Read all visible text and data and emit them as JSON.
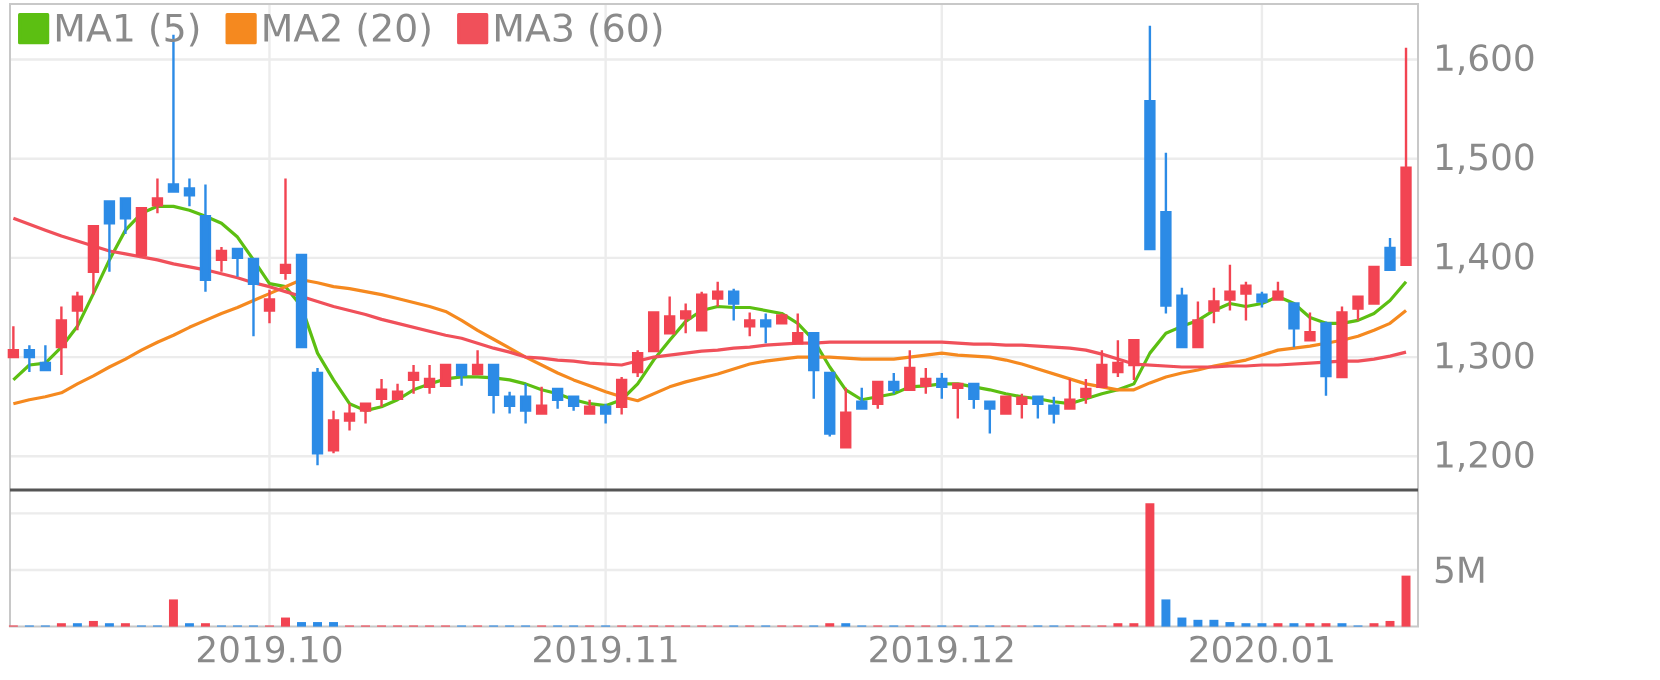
{
  "chart_data": [
    {
      "type": "candlestick",
      "categories": [
        null,
        null,
        null,
        null,
        null,
        null,
        null,
        null,
        null,
        null,
        null,
        null,
        null,
        null,
        null,
        null,
        "2019.10",
        null,
        null,
        null,
        null,
        null,
        null,
        null,
        null,
        null,
        null,
        null,
        null,
        null,
        null,
        null,
        null,
        null,
        null,
        null,
        null,
        "2019.11",
        null,
        null,
        null,
        null,
        null,
        null,
        null,
        null,
        null,
        null,
        null,
        null,
        null,
        null,
        null,
        null,
        null,
        null,
        null,
        null,
        "2019.12",
        null,
        null,
        null,
        null,
        null,
        null,
        null,
        null,
        null,
        null,
        null,
        null,
        null,
        null,
        null,
        null,
        null,
        null,
        null,
        "2020.01",
        null,
        null,
        null,
        null,
        null,
        null,
        null,
        null,
        null
      ],
      "ohlc": [
        [
          1300,
          1331,
          1300,
          1307
        ],
        [
          1307,
          1312,
          1285,
          1300
        ],
        [
          1294,
          1312,
          1287,
          1287
        ],
        [
          1310,
          1351,
          1282,
          1337
        ],
        [
          1347,
          1366,
          1327,
          1361
        ],
        [
          1386,
          1432,
          1363,
          1432
        ],
        [
          1457,
          1457,
          1386,
          1435
        ],
        [
          1460,
          1460,
          1424,
          1440
        ],
        [
          1403,
          1450,
          1401,
          1450
        ],
        [
          1453,
          1480,
          1445,
          1460
        ],
        [
          1474,
          1625,
          1467,
          1467
        ],
        [
          1470,
          1480,
          1452,
          1463
        ],
        [
          1442,
          1474,
          1366,
          1378
        ],
        [
          1398,
          1411,
          1386,
          1407
        ],
        [
          1409,
          1409,
          1381,
          1400
        ],
        [
          1399,
          1399,
          1321,
          1374
        ],
        [
          1347,
          1368,
          1334,
          1358
        ],
        [
          1385,
          1480,
          1378,
          1393
        ],
        [
          1403,
          1403,
          1310,
          1310
        ],
        [
          1284,
          1289,
          1191,
          1203
        ],
        [
          1206,
          1246,
          1203,
          1236
        ],
        [
          1236,
          1253,
          1226,
          1243
        ],
        [
          1246,
          1253,
          1233,
          1253
        ],
        [
          1258,
          1278,
          1250,
          1267
        ],
        [
          1258,
          1273,
          1258,
          1265
        ],
        [
          1277,
          1292,
          1263,
          1284
        ],
        [
          1270,
          1292,
          1263,
          1278
        ],
        [
          1271,
          1292,
          1270,
          1292
        ],
        [
          1292,
          1292,
          1271,
          1282
        ],
        [
          1283,
          1307,
          1283,
          1292
        ],
        [
          1292,
          1292,
          1243,
          1262
        ],
        [
          1260,
          1265,
          1243,
          1251
        ],
        [
          1260,
          1273,
          1233,
          1246
        ],
        [
          1243,
          1270,
          1242,
          1251
        ],
        [
          1268,
          1268,
          1248,
          1257
        ],
        [
          1260,
          1260,
          1246,
          1251
        ],
        [
          1243,
          1257,
          1243,
          1250
        ],
        [
          1250,
          1253,
          1233,
          1243
        ],
        [
          1250,
          1280,
          1242,
          1277
        ],
        [
          1285,
          1307,
          1280,
          1304
        ],
        [
          1306,
          1345,
          1306,
          1345
        ],
        [
          1324,
          1361,
          1324,
          1341
        ],
        [
          1339,
          1354,
          1324,
          1346
        ],
        [
          1327,
          1366,
          1327,
          1363
        ],
        [
          1359,
          1376,
          1351,
          1366
        ],
        [
          1366,
          1369,
          1337,
          1354
        ],
        [
          1331,
          1345,
          1321,
          1337
        ],
        [
          1337,
          1344,
          1314,
          1331
        ],
        [
          1334,
          1344,
          1334,
          1342
        ],
        [
          1314,
          1344,
          1314,
          1324
        ],
        [
          1324,
          1324,
          1258,
          1287
        ],
        [
          1284,
          1284,
          1220,
          1223
        ],
        [
          1209,
          1269,
          1209,
          1244
        ],
        [
          1255,
          1269,
          1248,
          1248
        ],
        [
          1253,
          1275,
          1248,
          1275
        ],
        [
          1275,
          1284,
          1263,
          1267
        ],
        [
          1267,
          1307,
          1267,
          1289
        ],
        [
          1271,
          1289,
          1263,
          1278
        ],
        [
          1278,
          1284,
          1258,
          1270
        ],
        [
          1269,
          1273,
          1238,
          1273
        ],
        [
          1273,
          1273,
          1248,
          1258
        ],
        [
          1255,
          1255,
          1223,
          1248
        ],
        [
          1243,
          1260,
          1243,
          1260
        ],
        [
          1253,
          1263,
          1238,
          1259
        ],
        [
          1260,
          1260,
          1238,
          1253
        ],
        [
          1251,
          1260,
          1233,
          1243
        ],
        [
          1248,
          1278,
          1248,
          1257
        ],
        [
          1260,
          1278,
          1253,
          1268
        ],
        [
          1270,
          1307,
          1270,
          1292
        ],
        [
          1285,
          1317,
          1280,
          1294
        ],
        [
          1292,
          1317,
          1277,
          1317
        ],
        [
          1558,
          1634,
          1408,
          1409
        ],
        [
          1446,
          1506,
          1344,
          1352
        ],
        [
          1362,
          1370,
          1310,
          1310
        ],
        [
          1310,
          1356,
          1310,
          1337
        ],
        [
          1347,
          1370,
          1334,
          1356
        ],
        [
          1358,
          1393,
          1347,
          1366
        ],
        [
          1364,
          1376,
          1337,
          1372
        ],
        [
          1363,
          1366,
          1350,
          1356
        ],
        [
          1358,
          1376,
          1358,
          1366
        ],
        [
          1354,
          1354,
          1310,
          1329
        ],
        [
          1317,
          1345,
          1317,
          1325
        ],
        [
          1334,
          1336,
          1261,
          1281
        ],
        [
          1280,
          1351,
          1280,
          1345
        ],
        [
          1349,
          1361,
          1337,
          1361
        ],
        [
          1354,
          1391,
          1354,
          1391
        ],
        [
          1410,
          1420,
          1388,
          1388
        ],
        [
          1393,
          1612,
          1393,
          1491
        ]
      ],
      "colors": [
        "#f24452",
        "#2c8be6",
        "#2c8be6",
        "#f24452",
        "#f24452",
        "#f24452",
        "#2c8be6",
        "#2c8be6",
        "#f24452",
        "#f24452",
        "#2c8be6",
        "#2c8be6",
        "#2c8be6",
        "#f24452",
        "#2c8be6",
        "#2c8be6",
        "#f24452",
        "#f24452",
        "#2c8be6",
        "#2c8be6",
        "#f24452",
        "#f24452",
        "#f24452",
        "#f24452",
        "#f24452",
        "#f24452",
        "#f24452",
        "#f24452",
        "#2c8be6",
        "#f24452",
        "#2c8be6",
        "#2c8be6",
        "#2c8be6",
        "#f24452",
        "#2c8be6",
        "#2c8be6",
        "#f24452",
        "#2c8be6",
        "#f24452",
        "#f24452",
        "#f24452",
        "#f24452",
        "#f24452",
        "#f24452",
        "#f24452",
        "#2c8be6",
        "#f24452",
        "#2c8be6",
        "#f24452",
        "#f24452",
        "#2c8be6",
        "#2c8be6",
        "#f24452",
        "#2c8be6",
        "#f24452",
        "#2c8be6",
        "#f24452",
        "#f24452",
        "#2c8be6",
        "#f24452",
        "#2c8be6",
        "#2c8be6",
        "#f24452",
        "#f24452",
        "#2c8be6",
        "#2c8be6",
        "#f24452",
        "#f24452",
        "#f24452",
        "#f24452",
        "#f24452",
        "#2c8be6",
        "#2c8be6",
        "#2c8be6",
        "#f24452",
        "#f24452",
        "#f24452",
        "#f24452",
        "#2c8be6",
        "#f24452",
        "#2c8be6",
        "#f24452",
        "#2c8be6",
        "#f24452",
        "#f24452",
        "#f24452",
        "#2c8be6",
        "#f24452"
      ],
      "series": [
        {
          "name": "MA1 (5)",
          "type": "line",
          "color": "#5cbf12",
          "values": [
            1277,
            1292,
            1294,
            1310,
            1331,
            1364,
            1398,
            1428,
            1445,
            1452,
            1452,
            1448,
            1442,
            1435,
            1421,
            1398,
            1374,
            1371,
            1351,
            1304,
            1277,
            1253,
            1246,
            1250,
            1257,
            1267,
            1273,
            1278,
            1280,
            1280,
            1279,
            1277,
            1273,
            1267,
            1263,
            1257,
            1253,
            1251,
            1257,
            1273,
            1297,
            1317,
            1336,
            1347,
            1351,
            1350,
            1350,
            1347,
            1344,
            1334,
            1317,
            1290,
            1267,
            1257,
            1260,
            1263,
            1270,
            1271,
            1273,
            1273,
            1270,
            1267,
            1263,
            1260,
            1258,
            1255,
            1253,
            1258,
            1263,
            1267,
            1273,
            1304,
            1324,
            1331,
            1337,
            1347,
            1354,
            1351,
            1354,
            1361,
            1354,
            1340,
            1334,
            1334,
            1337,
            1344,
            1357,
            1376
          ]
        },
        {
          "name": "MA2 (20)",
          "type": "line",
          "color": "#f5891f",
          "values": [
            1253,
            1257,
            1260,
            1264,
            1273,
            1281,
            1290,
            1298,
            1307,
            1315,
            1322,
            1330,
            1337,
            1344,
            1350,
            1357,
            1364,
            1371,
            1378,
            1375,
            1371,
            1369,
            1366,
            1363,
            1359,
            1355,
            1351,
            1346,
            1337,
            1327,
            1318,
            1309,
            1300,
            1292,
            1284,
            1277,
            1271,
            1265,
            1260,
            1256,
            1263,
            1270,
            1275,
            1279,
            1283,
            1288,
            1293,
            1296,
            1298,
            1300,
            1300,
            1300,
            1299,
            1298,
            1298,
            1298,
            1300,
            1302,
            1304,
            1302,
            1301,
            1300,
            1297,
            1293,
            1288,
            1283,
            1278,
            1273,
            1270,
            1267,
            1267,
            1274,
            1280,
            1284,
            1287,
            1291,
            1294,
            1297,
            1302,
            1307,
            1309,
            1311,
            1314,
            1317,
            1321,
            1327,
            1334,
            1347
          ]
        },
        {
          "name": "MA3 (60)",
          "type": "line",
          "color": "#f0505a",
          "values": [
            1440,
            1434,
            1428,
            1422,
            1417,
            1412,
            1407,
            1404,
            1401,
            1398,
            1394,
            1391,
            1388,
            1384,
            1380,
            1375,
            1371,
            1366,
            1361,
            1356,
            1351,
            1347,
            1343,
            1338,
            1334,
            1330,
            1326,
            1322,
            1319,
            1314,
            1309,
            1305,
            1300,
            1299,
            1297,
            1296,
            1294,
            1293,
            1292,
            1296,
            1300,
            1302,
            1304,
            1306,
            1307,
            1309,
            1310,
            1312,
            1313,
            1314,
            1314,
            1315,
            1315,
            1315,
            1315,
            1315,
            1315,
            1315,
            1315,
            1314,
            1313,
            1313,
            1312,
            1312,
            1311,
            1310,
            1309,
            1307,
            1303,
            1298,
            1293,
            1292,
            1291,
            1290,
            1290,
            1290,
            1291,
            1291,
            1292,
            1292,
            1293,
            1294,
            1295,
            1296,
            1296,
            1298,
            1301,
            1305
          ]
        }
      ],
      "ylim": [
        1166,
        1656
      ],
      "yticks": [
        {
          "value": 1200,
          "label": "1,200"
        },
        {
          "value": 1300,
          "label": "1,300"
        },
        {
          "value": 1400,
          "label": "1,400"
        },
        {
          "value": 1500,
          "label": "1,500"
        },
        {
          "value": 1600,
          "label": "1,600"
        }
      ],
      "grid": true,
      "legend": "top left",
      "tick_labels": "y"
    },
    {
      "type": "bar",
      "categories": [
        null,
        null,
        null,
        null,
        null,
        null,
        null,
        null,
        null,
        null,
        null,
        null,
        null,
        null,
        null,
        null,
        "2019.10",
        null,
        null,
        null,
        null,
        null,
        null,
        null,
        null,
        null,
        null,
        null,
        null,
        null,
        null,
        null,
        null,
        null,
        null,
        null,
        null,
        "2019.11",
        null,
        null,
        null,
        null,
        null,
        null,
        null,
        null,
        null,
        null,
        null,
        null,
        null,
        null,
        null,
        null,
        null,
        null,
        null,
        null,
        "2019.12",
        null,
        null,
        null,
        null,
        null,
        null,
        null,
        null,
        null,
        null,
        null,
        null,
        null,
        null,
        null,
        null,
        null,
        null,
        null,
        "2020.01",
        null,
        null,
        null,
        null,
        null,
        null,
        null,
        null,
        null
      ],
      "values": [
        0.1,
        0.1,
        0.1,
        0.3,
        0.3,
        0.5,
        0.3,
        0.3,
        0.1,
        0.1,
        2.4,
        0.3,
        0.3,
        0.1,
        0.1,
        0.1,
        0.1,
        0.8,
        0.4,
        0.4,
        0.4,
        0.1,
        0.1,
        0.1,
        0.1,
        0.1,
        0.1,
        0.1,
        0.1,
        0.1,
        0.1,
        0.1,
        0.1,
        0.1,
        0.1,
        0.1,
        0.1,
        0.1,
        0.1,
        0.1,
        0.1,
        0.1,
        0.1,
        0.1,
        0.1,
        0.1,
        0.1,
        0.1,
        0.1,
        0.1,
        0.1,
        0.3,
        0.3,
        0.1,
        0.1,
        0.1,
        0.1,
        0.1,
        0.1,
        0.1,
        0.1,
        0.1,
        0.1,
        0.1,
        0.1,
        0.1,
        0.1,
        0.1,
        0.1,
        0.3,
        0.3,
        10.9,
        2.4,
        0.8,
        0.6,
        0.6,
        0.4,
        0.3,
        0.3,
        0.3,
        0.3,
        0.3,
        0.3,
        0.3,
        0.1,
        0.3,
        0.5,
        4.5
      ],
      "colors": [
        "#f24452",
        "#2c8be6",
        "#2c8be6",
        "#f24452",
        "#2c8be6",
        "#f24452",
        "#2c8be6",
        "#f24452",
        "#2c8be6",
        "#2c8be6",
        "#f24452",
        "#2c8be6",
        "#f24452",
        "#2c8be6",
        "#2c8be6",
        "#2c8be6",
        "#f24452",
        "#f24452",
        "#2c8be6",
        "#2c8be6",
        "#2c8be6",
        "#f24452",
        "#f24452",
        "#f24452",
        "#f24452",
        "#f24452",
        "#f24452",
        "#f24452",
        "#2c8be6",
        "#f24452",
        "#2c8be6",
        "#2c8be6",
        "#2c8be6",
        "#f24452",
        "#2c8be6",
        "#2c8be6",
        "#f24452",
        "#2c8be6",
        "#f24452",
        "#f24452",
        "#f24452",
        "#f24452",
        "#f24452",
        "#f24452",
        "#f24452",
        "#2c8be6",
        "#f24452",
        "#2c8be6",
        "#f24452",
        "#f24452",
        "#2c8be6",
        "#f24452",
        "#2c8be6",
        "#2c8be6",
        "#f24452",
        "#2c8be6",
        "#f24452",
        "#f24452",
        "#2c8be6",
        "#f24452",
        "#2c8be6",
        "#2c8be6",
        "#f24452",
        "#f24452",
        "#2c8be6",
        "#2c8be6",
        "#f24452",
        "#f24452",
        "#f24452",
        "#f24452",
        "#f24452",
        "#f24452",
        "#2c8be6",
        "#2c8be6",
        "#2c8be6",
        "#2c8be6",
        "#2c8be6",
        "#2c8be6",
        "#2c8be6",
        "#f24452",
        "#2c8be6",
        "#f24452",
        "#f24452",
        "#2c8be6",
        "#2c8be6",
        "#f24452",
        "#f24452",
        "#f24452"
      ],
      "ylim": [
        0,
        12.06
      ],
      "yticks": [
        {
          "value": 5,
          "label": "5M"
        },
        {
          "value": 10,
          "label": null
        }
      ],
      "grid": true
    }
  ]
}
